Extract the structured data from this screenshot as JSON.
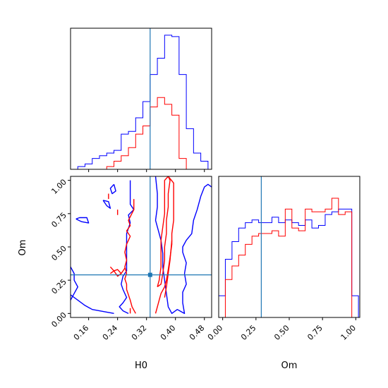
{
  "chart_data": {
    "type": "corner",
    "parameters": [
      "H0",
      "Om"
    ],
    "truth": {
      "H0": 0.33,
      "Om": 0.29
    },
    "colors": {
      "blue": "#0000ff",
      "red": "#ff0000",
      "truth": "#1f77b4"
    },
    "axes": {
      "H0": {
        "range": [
          0.11,
          0.5
        ],
        "ticks": [
          0.16,
          0.24,
          0.32,
          0.4,
          0.48
        ],
        "tick_labels": [
          "0.16",
          "0.24",
          "0.32",
          "0.40",
          "0.48"
        ],
        "label": "H0"
      },
      "Om": {
        "range": [
          -0.03,
          1.03
        ],
        "ticks": [
          0.0,
          0.25,
          0.5,
          0.75,
          1.0
        ],
        "tick_labels": [
          "0.00",
          "0.25",
          "0.50",
          "0.75",
          "1.00"
        ],
        "label": "Om"
      }
    },
    "hist_H0": {
      "bin_edges": [
        0.11,
        0.13,
        0.15,
        0.17,
        0.19,
        0.21,
        0.23,
        0.25,
        0.27,
        0.29,
        0.31,
        0.33,
        0.35,
        0.37,
        0.39,
        0.41,
        0.43,
        0.45,
        0.47,
        0.49
      ],
      "ymax": 1.0,
      "series": [
        {
          "color": "blue",
          "values": [
            0.0,
            0.02,
            0.04,
            0.08,
            0.1,
            0.12,
            0.14,
            0.26,
            0.28,
            0.38,
            0.5,
            0.7,
            0.82,
            0.99,
            0.98,
            0.7,
            0.3,
            0.12,
            0.06
          ]
        },
        {
          "color": "red",
          "values": [
            0.0,
            0.0,
            0.0,
            0.0,
            0.0,
            0.02,
            0.06,
            0.1,
            0.16,
            0.26,
            0.32,
            0.46,
            0.53,
            0.48,
            0.4,
            0.08,
            0.0,
            0.0,
            0.0
          ]
        }
      ]
    },
    "hist_Om": {
      "bin_edges": [
        -0.03,
        0.02,
        0.07,
        0.12,
        0.17,
        0.22,
        0.27,
        0.32,
        0.37,
        0.42,
        0.47,
        0.52,
        0.57,
        0.62,
        0.67,
        0.72,
        0.77,
        0.82,
        0.87,
        0.92,
        0.97,
        1.02
      ],
      "ymax": 1.0,
      "series": [
        {
          "color": "blue",
          "values": [
            0.16,
            0.43,
            0.56,
            0.66,
            0.7,
            0.72,
            0.7,
            0.7,
            0.74,
            0.7,
            0.72,
            0.7,
            0.68,
            0.72,
            0.66,
            0.68,
            0.76,
            0.78,
            0.8,
            0.8,
            0.16
          ]
        },
        {
          "color": "red",
          "values": [
            0.0,
            0.28,
            0.38,
            0.46,
            0.54,
            0.6,
            0.62,
            0.62,
            0.64,
            0.6,
            0.8,
            0.66,
            0.64,
            0.8,
            0.78,
            0.78,
            0.8,
            0.88,
            0.76,
            0.78,
            0.0
          ]
        }
      ]
    },
    "contours_2d": [
      {
        "color": "blue",
        "points": [
          [
            0.27,
            0.0
          ],
          [
            0.255,
            0.02
          ],
          [
            0.245,
            0.05
          ],
          [
            0.255,
            0.08
          ],
          [
            0.265,
            0.12
          ],
          [
            0.255,
            0.18
          ],
          [
            0.25,
            0.22
          ],
          [
            0.255,
            0.28
          ],
          [
            0.265,
            0.32
          ],
          [
            0.265,
            0.4
          ],
          [
            0.265,
            0.5
          ],
          [
            0.265,
            0.6
          ],
          [
            0.275,
            0.68
          ],
          [
            0.27,
            0.74
          ],
          [
            0.285,
            0.78
          ],
          [
            0.275,
            0.82
          ],
          [
            0.275,
            0.92
          ],
          [
            0.275,
            1.0
          ]
        ]
      },
      {
        "color": "blue",
        "points": [
          [
            0.345,
            1.03
          ],
          [
            0.35,
            0.9
          ],
          [
            0.35,
            0.8
          ],
          [
            0.345,
            0.7
          ],
          [
            0.36,
            0.55
          ],
          [
            0.365,
            0.45
          ],
          [
            0.365,
            0.35
          ],
          [
            0.37,
            0.25
          ],
          [
            0.375,
            0.15
          ],
          [
            0.38,
            0.05
          ],
          [
            0.39,
            0.0
          ],
          [
            0.405,
            0.03
          ],
          [
            0.425,
            0.0
          ],
          [
            0.42,
            0.08
          ],
          [
            0.42,
            0.16
          ],
          [
            0.43,
            0.22
          ],
          [
            0.425,
            0.3
          ],
          [
            0.43,
            0.38
          ],
          [
            0.42,
            0.46
          ],
          [
            0.42,
            0.5
          ],
          [
            0.43,
            0.55
          ],
          [
            0.445,
            0.6
          ],
          [
            0.45,
            0.7
          ],
          [
            0.46,
            0.78
          ],
          [
            0.47,
            0.88
          ],
          [
            0.48,
            0.95
          ],
          [
            0.49,
            0.97
          ],
          [
            0.5,
            0.95
          ]
        ]
      },
      {
        "color": "blue",
        "points": [
          [
            0.11,
            0.14
          ],
          [
            0.13,
            0.1
          ],
          [
            0.15,
            0.06
          ],
          [
            0.17,
            0.03
          ],
          [
            0.19,
            0.02
          ],
          [
            0.21,
            0.01
          ],
          [
            0.23,
            0.0
          ]
        ]
      },
      {
        "color": "blue",
        "points": [
          [
            0.11,
            0.35
          ],
          [
            0.12,
            0.3
          ],
          [
            0.12,
            0.25
          ],
          [
            0.13,
            0.2
          ],
          [
            0.12,
            0.15
          ],
          [
            0.11,
            0.1
          ]
        ]
      },
      {
        "color": "blue",
        "points": [
          [
            0.23,
            0.97
          ],
          [
            0.22,
            0.94
          ],
          [
            0.225,
            0.9
          ],
          [
            0.235,
            0.92
          ],
          [
            0.23,
            0.97
          ]
        ]
      },
      {
        "color": "blue",
        "points": [
          [
            0.2,
            0.85
          ],
          [
            0.21,
            0.81
          ],
          [
            0.22,
            0.79
          ],
          [
            0.215,
            0.84
          ],
          [
            0.2,
            0.85
          ]
        ]
      },
      {
        "color": "blue",
        "points": [
          [
            0.125,
            0.71
          ],
          [
            0.14,
            0.69
          ],
          [
            0.16,
            0.68
          ],
          [
            0.155,
            0.72
          ],
          [
            0.135,
            0.72
          ],
          [
            0.125,
            0.71
          ]
        ]
      },
      {
        "color": "red",
        "points": [
          [
            0.29,
            0.0
          ],
          [
            0.28,
            0.05
          ],
          [
            0.275,
            0.1
          ],
          [
            0.27,
            0.14
          ],
          [
            0.265,
            0.18
          ],
          [
            0.265,
            0.22
          ],
          [
            0.26,
            0.26
          ],
          [
            0.265,
            0.3
          ],
          [
            0.26,
            0.35
          ],
          [
            0.265,
            0.4
          ],
          [
            0.26,
            0.46
          ],
          [
            0.265,
            0.52
          ],
          [
            0.275,
            0.58
          ],
          [
            0.265,
            0.62
          ],
          [
            0.275,
            0.66
          ],
          [
            0.27,
            0.7
          ],
          [
            0.285,
            0.78
          ],
          [
            0.285,
            0.86
          ]
        ]
      },
      {
        "color": "red",
        "points": [
          [
            0.345,
            0.0
          ],
          [
            0.35,
            0.05
          ],
          [
            0.355,
            0.1
          ],
          [
            0.36,
            0.15
          ],
          [
            0.37,
            0.2
          ],
          [
            0.375,
            0.25
          ],
          [
            0.38,
            0.33
          ],
          [
            0.385,
            0.42
          ],
          [
            0.39,
            0.52
          ],
          [
            0.39,
            0.6
          ],
          [
            0.395,
            0.7
          ],
          [
            0.395,
            0.8
          ],
          [
            0.395,
            0.9
          ],
          [
            0.395,
            0.98
          ],
          [
            0.38,
            1.03
          ]
        ]
      },
      {
        "color": "red",
        "points": [
          [
            0.35,
            0.2
          ],
          [
            0.355,
            0.25
          ],
          [
            0.36,
            0.35
          ],
          [
            0.36,
            0.45
          ],
          [
            0.36,
            0.55
          ],
          [
            0.365,
            0.65
          ],
          [
            0.37,
            0.75
          ],
          [
            0.37,
            0.85
          ],
          [
            0.37,
            1.0
          ],
          [
            0.38,
            1.03
          ],
          [
            0.385,
            1.0
          ],
          [
            0.38,
            0.9
          ],
          [
            0.38,
            0.8
          ],
          [
            0.375,
            0.7
          ],
          [
            0.375,
            0.6
          ],
          [
            0.37,
            0.5
          ],
          [
            0.37,
            0.4
          ],
          [
            0.365,
            0.3
          ],
          [
            0.36,
            0.22
          ],
          [
            0.35,
            0.2
          ]
        ]
      },
      {
        "color": "red",
        "points": [
          [
            0.37,
            0.12
          ],
          [
            0.375,
            0.2
          ],
          [
            0.38,
            0.3
          ],
          [
            0.385,
            0.4
          ],
          [
            0.39,
            0.55
          ]
        ]
      },
      {
        "color": "red",
        "points": [
          [
            0.22,
            0.35
          ],
          [
            0.23,
            0.32
          ],
          [
            0.24,
            0.28
          ],
          [
            0.25,
            0.3
          ],
          [
            0.26,
            0.34
          ],
          [
            0.25,
            0.3
          ],
          [
            0.24,
            0.33
          ],
          [
            0.23,
            0.32
          ],
          [
            0.22,
            0.3
          ]
        ]
      },
      {
        "color": "red",
        "points": [
          [
            0.215,
            0.9
          ],
          [
            0.215,
            0.86
          ]
        ]
      },
      {
        "color": "red",
        "points": [
          [
            0.24,
            0.78
          ],
          [
            0.24,
            0.74
          ]
        ]
      },
      {
        "color": "red",
        "points": [
          [
            0.275,
            0.0
          ],
          [
            0.275,
            0.04
          ]
        ]
      }
    ]
  }
}
